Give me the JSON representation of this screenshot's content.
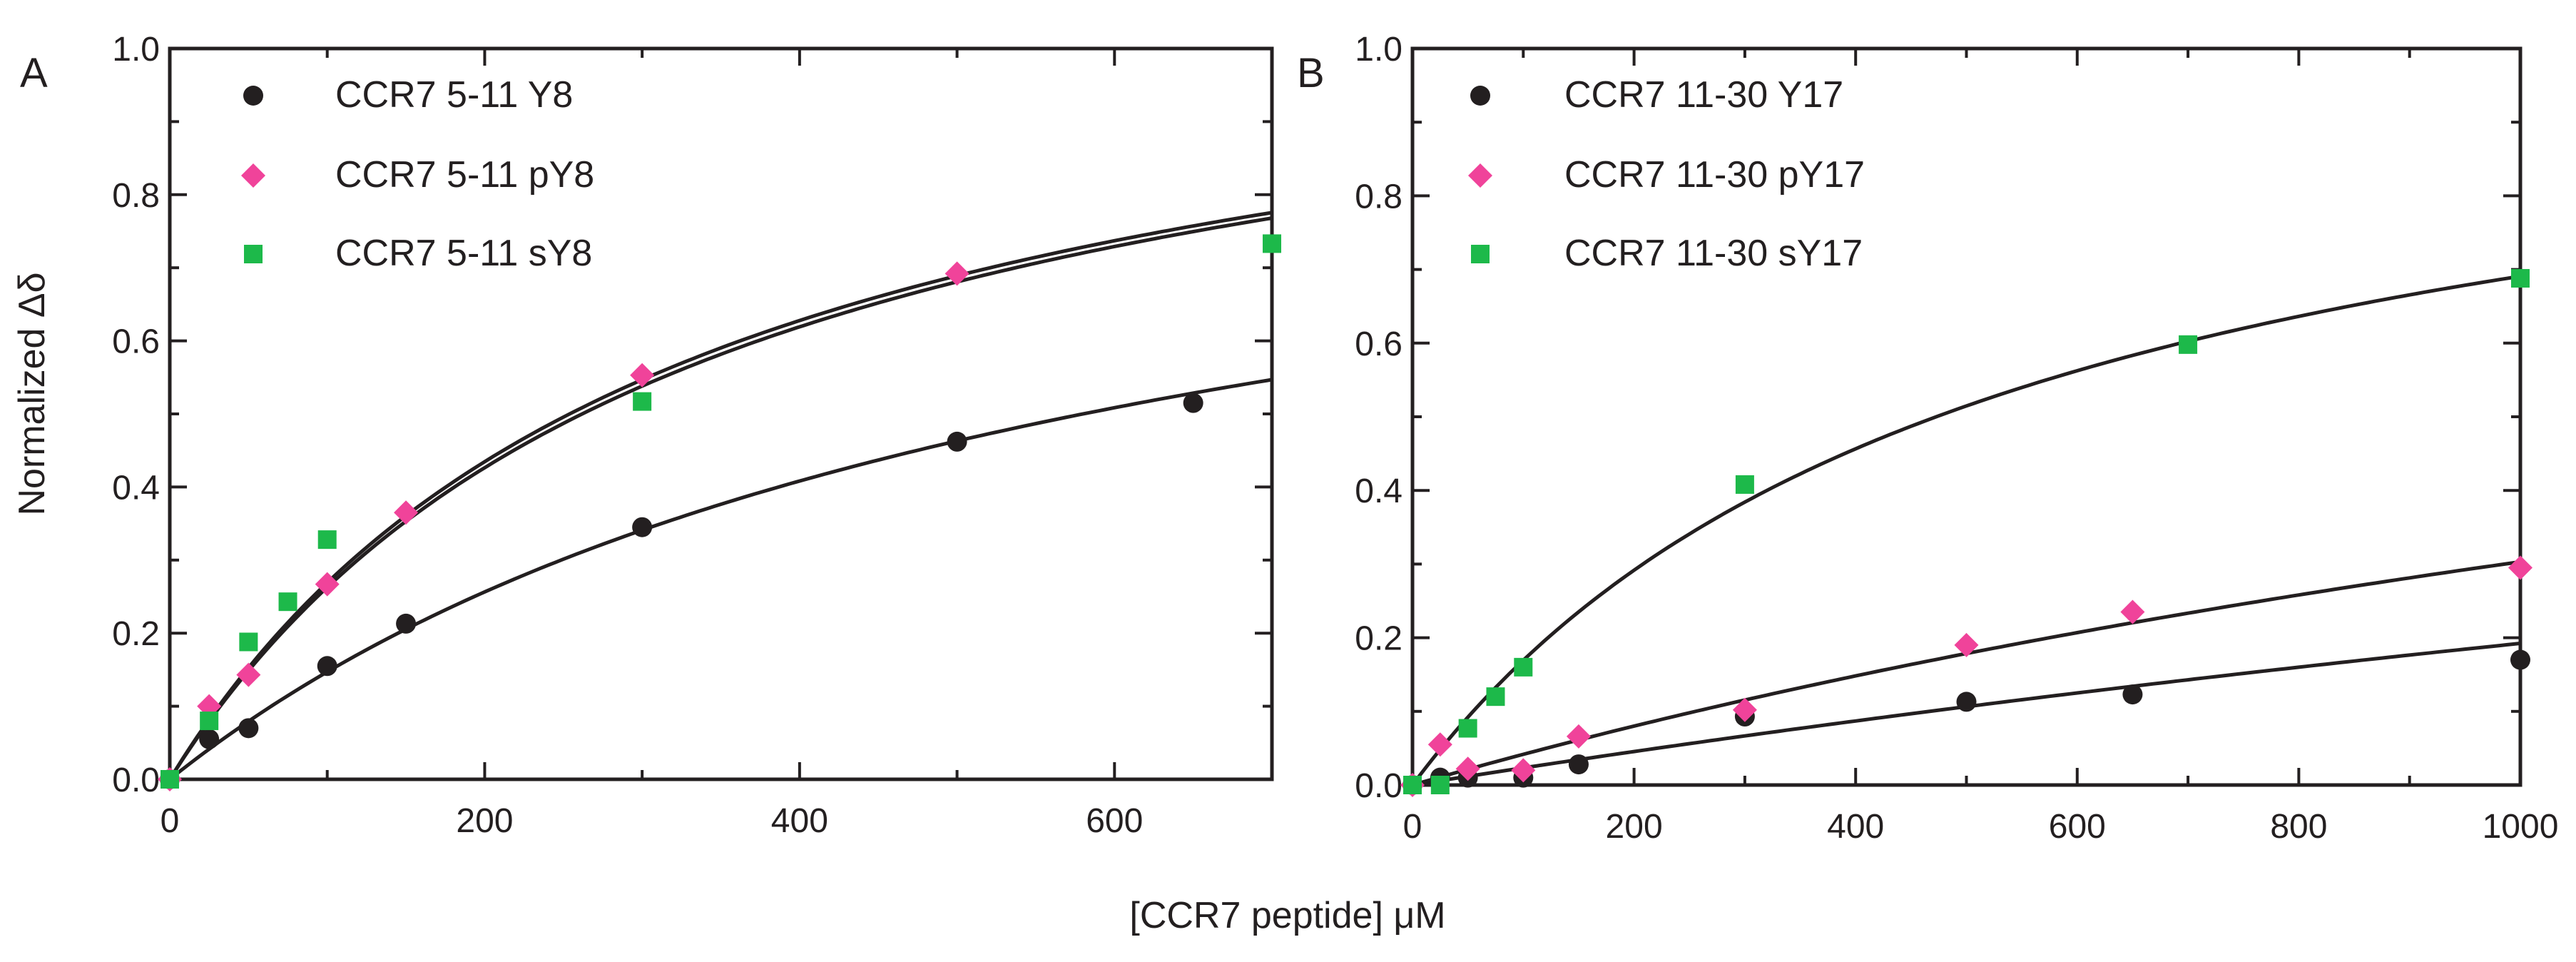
{
  "figure": {
    "shared_xlabel": "[CCR7 peptide] μM",
    "ylabel": "Normalized Δδ"
  },
  "chart_data": [
    {
      "panel": "A",
      "type": "scatter",
      "xlim": [
        0,
        700
      ],
      "ylim": [
        0,
        1.0
      ],
      "xticks": [
        0,
        200,
        400,
        600
      ],
      "yticks": [
        0.0,
        0.2,
        0.4,
        0.6,
        0.8,
        1.0
      ],
      "xlabel": "[CCR7 peptide] μM",
      "ylabel": "Normalized Δδ",
      "legend_position": "top-left",
      "series": [
        {
          "name": "CCR7 5-11 Y8",
          "marker": "circle",
          "color": "#231f20",
          "x": [
            0,
            25,
            50,
            100,
            150,
            300,
            500,
            650
          ],
          "y": [
            0.0,
            0.055,
            0.07,
            0.155,
            0.213,
            0.345,
            0.462,
            0.515
          ],
          "fit": {
            "bmax": 1.0,
            "kd": 580
          }
        },
        {
          "name": "CCR7 5-11 pY8",
          "marker": "diamond",
          "color": "#f0439a",
          "x": [
            0,
            25,
            50,
            100,
            150,
            300,
            500
          ],
          "y": [
            0.0,
            0.1,
            0.143,
            0.267,
            0.365,
            0.553,
            0.692
          ],
          "fit": {
            "bmax": 1.13,
            "kd": 330
          }
        },
        {
          "name": "CCR7 5-11 sY8",
          "marker": "square",
          "color": "#1db94a",
          "x": [
            0,
            25,
            50,
            75,
            100,
            300,
            700
          ],
          "y": [
            0.0,
            0.08,
            0.188,
            0.243,
            0.328,
            0.517,
            0.733
          ],
          "fit": {
            "bmax": 1.13,
            "kd": 320
          }
        }
      ]
    },
    {
      "panel": "B",
      "type": "scatter",
      "xlim": [
        0,
        1000
      ],
      "ylim": [
        0,
        1.0
      ],
      "xticks": [
        0,
        200,
        400,
        600,
        800,
        1000
      ],
      "yticks": [
        0.0,
        0.2,
        0.4,
        0.6,
        0.8,
        1.0
      ],
      "xlabel": "[CCR7 peptide] μM",
      "ylabel": "",
      "legend_position": "top-left",
      "series": [
        {
          "name": "CCR7 11-30 Y17",
          "marker": "circle",
          "color": "#231f20",
          "x": [
            0,
            25,
            50,
            100,
            150,
            300,
            500,
            650,
            1000
          ],
          "y": [
            0.0,
            0.01,
            0.01,
            0.01,
            0.028,
            0.093,
            0.113,
            0.123,
            0.17
          ],
          "fit": {
            "bmax": 1.0,
            "kd": 4200
          }
        },
        {
          "name": "CCR7 11-30 pY17",
          "marker": "diamond",
          "color": "#f0439a",
          "x": [
            0,
            25,
            50,
            100,
            150,
            300,
            500,
            650,
            1000
          ],
          "y": [
            0.0,
            0.055,
            0.022,
            0.02,
            0.066,
            0.102,
            0.19,
            0.235,
            0.295
          ],
          "fit": {
            "bmax": 1.0,
            "kd": 2300
          }
        },
        {
          "name": "CCR7 11-30 sY17",
          "marker": "square",
          "color": "#1db94a",
          "x": [
            0,
            25,
            50,
            75,
            100,
            300,
            700,
            1000
          ],
          "y": [
            0.0,
            0.0,
            0.077,
            0.12,
            0.16,
            0.408,
            0.598,
            0.688
          ],
          "fit": {
            "bmax": 1.05,
            "kd": 520
          }
        }
      ]
    }
  ]
}
